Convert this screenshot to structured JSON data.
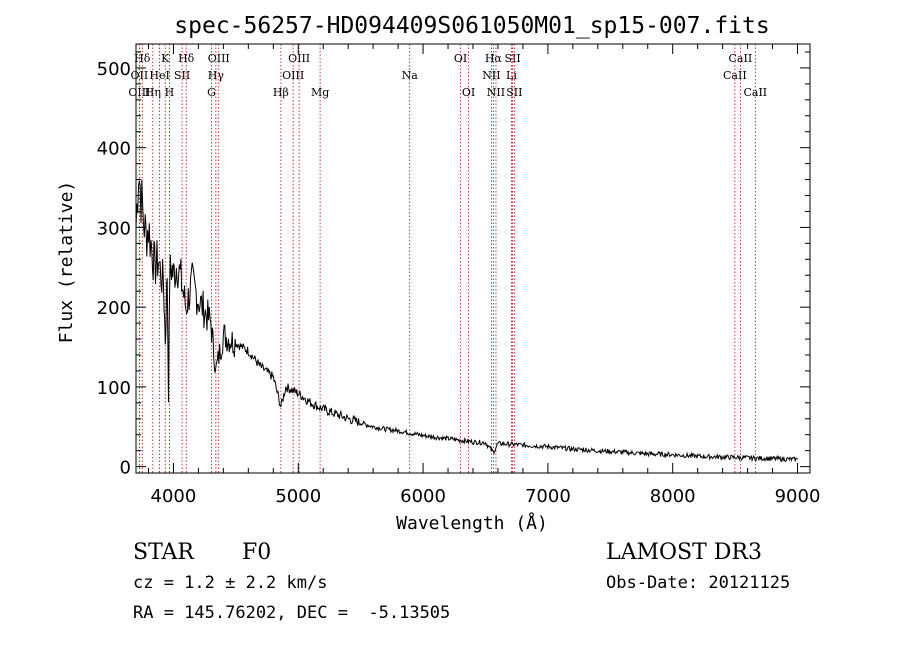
{
  "chart_data": {
    "type": "line",
    "title": "spec-56257-HD094409S061050M01_sp15-007.fits",
    "xlabel": "Wavelength (Å)",
    "ylabel": "Flux (relative)",
    "xlim": [
      3700,
      9100
    ],
    "ylim": [
      -8,
      530
    ],
    "xticks": [
      4000,
      5000,
      6000,
      7000,
      8000,
      9000
    ],
    "yticks": [
      0,
      100,
      200,
      300,
      400,
      500
    ],
    "series": [
      {
        "name": "spectrum",
        "x": [
          3700,
          3720,
          3740,
          3760,
          3780,
          3800,
          3820,
          3850,
          3880,
          3900,
          3920,
          3935,
          3950,
          3960,
          3970,
          3985,
          4000,
          4030,
          4060,
          4100,
          4150,
          4200,
          4250,
          4300,
          4340,
          4400,
          4500,
          4600,
          4700,
          4800,
          4861,
          4900,
          5000,
          5100,
          5200,
          5300,
          5400,
          5500,
          5600,
          5700,
          5800,
          5900,
          6000,
          6100,
          6200,
          6300,
          6400,
          6500,
          6563,
          6600,
          6700,
          6800,
          7000,
          7200,
          7400,
          7600,
          7800,
          8000,
          8200,
          8400,
          8600,
          8800,
          9000
        ],
        "values": [
          300,
          375,
          340,
          310,
          290,
          300,
          280,
          250,
          260,
          240,
          230,
          160,
          245,
          90,
          240,
          250,
          240,
          255,
          235,
          200,
          230,
          210,
          195,
          180,
          120,
          165,
          155,
          145,
          125,
          112,
          75,
          100,
          92,
          80,
          72,
          66,
          60,
          55,
          50,
          47,
          45,
          42,
          39,
          37,
          35,
          33,
          31,
          30,
          18,
          29,
          28,
          27,
          25,
          22,
          20,
          18,
          16,
          15,
          13,
          12,
          11,
          10,
          9
        ]
      }
    ],
    "lines": [
      {
        "label": "Hδ",
        "x": 3750,
        "row": 0
      },
      {
        "label": "OII",
        "x": 3727,
        "row": 1
      },
      {
        "label": "OIII",
        "x": 3727,
        "row": 2
      },
      {
        "label": "K",
        "x": 3934,
        "row": 0
      },
      {
        "label": "HeI",
        "x": 3889,
        "row": 1
      },
      {
        "label": "Hη",
        "x": 3835,
        "row": 2
      },
      {
        "label": "SII",
        "x": 4069,
        "row": 1
      },
      {
        "label": "H",
        "x": 3968,
        "row": 2
      },
      {
        "label": "Hδ",
        "x": 4102,
        "row": 0
      },
      {
        "label": "OIII",
        "x": 4363,
        "row": 0
      },
      {
        "label": "Hγ",
        "x": 4340,
        "row": 1
      },
      {
        "label": "G",
        "x": 4305,
        "row": 2
      },
      {
        "label": "Hβ",
        "x": 4861,
        "row": 2
      },
      {
        "label": "OIII",
        "x": 5007,
        "row": 0
      },
      {
        "label": "OIII",
        "x": 4959,
        "row": 1
      },
      {
        "label": "Mg",
        "x": 5175,
        "row": 2
      },
      {
        "label": "Na",
        "x": 5893,
        "row": 1
      },
      {
        "label": "OI",
        "x": 6300,
        "row": 0
      },
      {
        "label": "OI",
        "x": 6364,
        "row": 2
      },
      {
        "label": "Hα",
        "x": 6563,
        "row": 0
      },
      {
        "label": "SII",
        "x": 6717,
        "row": 0
      },
      {
        "label": "NII",
        "x": 6548,
        "row": 1
      },
      {
        "label": "Li",
        "x": 6708,
        "row": 1
      },
      {
        "label": "NII",
        "x": 6584,
        "row": 2
      },
      {
        "label": "SII",
        "x": 6731,
        "row": 2
      },
      {
        "label": "CaII",
        "x": 8542,
        "row": 0
      },
      {
        "label": "CaII",
        "x": 8498,
        "row": 1
      },
      {
        "label": "CaII",
        "x": 8662,
        "row": 2
      }
    ]
  },
  "info": {
    "class": "STAR",
    "subclass": "F0",
    "survey": "LAMOST DR3",
    "cz": "cz = 1.2 ± 2.2 km/s",
    "obs_date": "Obs-Date: 20121125",
    "radec": "RA = 145.76202, DEC =  -5.13505"
  }
}
